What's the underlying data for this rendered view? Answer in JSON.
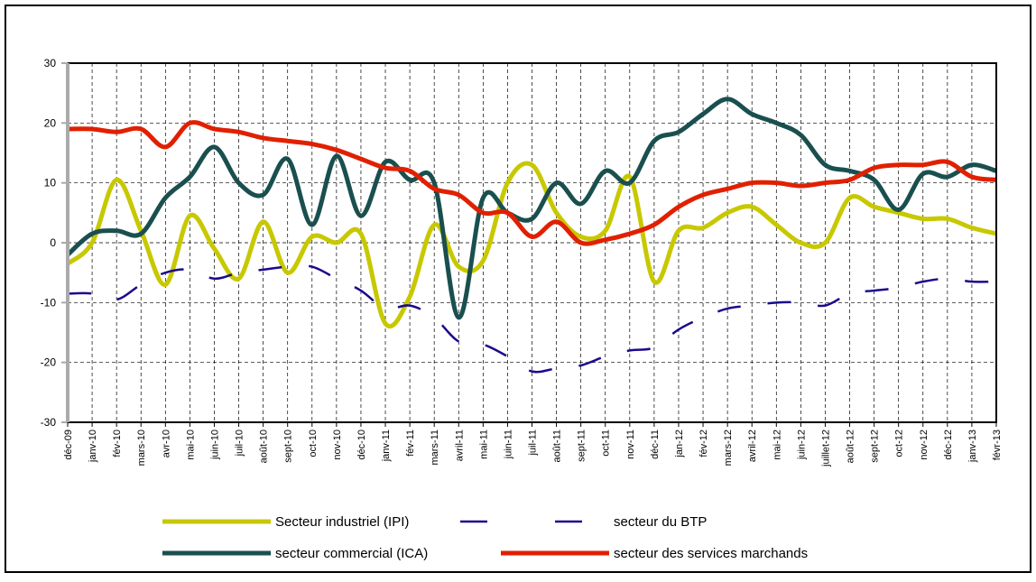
{
  "chart_data": {
    "type": "line",
    "categories": [
      "déc-09",
      "janv-10",
      "fév-10",
      "mars-10",
      "avr-10",
      "mai-10",
      "juin-10",
      "juil-10",
      "août-10",
      "sept-10",
      "oct-10",
      "nov-10",
      "déc-10",
      "janv-11",
      "fév-11",
      "mars-11",
      "avril-11",
      "mai-11",
      "juin-11",
      "juil-11",
      "août-11",
      "sept-11",
      "oct-11",
      "nov-11",
      "déc-11",
      "jan-12",
      "fév-12",
      "mars-12",
      "avril-12",
      "mai-12",
      "juin-12",
      "juillet-12",
      "août-12",
      "sept-12",
      "oct-12",
      "nov-12",
      "déc-12",
      "janv-13",
      "févr-13"
    ],
    "series": [
      {
        "name": "Secteur industriel (IPI)",
        "color": "#c8c800",
        "style": "solid",
        "values": [
          -3.5,
          0,
          10.5,
          2,
          -7,
          4.5,
          -1,
          -6,
          3.5,
          -5,
          1,
          0,
          1.5,
          -13.5,
          -9,
          3,
          -4,
          -3,
          10,
          13,
          5,
          1,
          2,
          11,
          -6.5,
          2,
          2.5,
          5,
          6,
          3,
          0,
          0,
          7.5,
          6,
          5,
          4,
          4,
          2.5,
          1.5
        ]
      },
      {
        "name": "secteur du BTP",
        "color": "#1a0a8c",
        "style": "dashed",
        "values": [
          -8.5,
          -8.5,
          -9.5,
          -7,
          -5,
          -4.5,
          -6,
          -5,
          -4.5,
          -4,
          -4,
          -6,
          -8,
          -11,
          -10.5,
          -12.5,
          -16.5,
          -17,
          -19,
          -21.5,
          -21,
          -20.5,
          -19,
          -18,
          -17.5,
          -14.5,
          -12.5,
          -11,
          -10.5,
          -10,
          -10,
          -10.5,
          -8.5,
          -8,
          -7.5,
          -6.5,
          -6,
          -6.5,
          -6.5
        ]
      },
      {
        "name": "secteur commercial (ICA)",
        "color": "#1a4f4f",
        "style": "solid",
        "values": [
          -2,
          1.5,
          2,
          1.5,
          7.5,
          11,
          16,
          10,
          8,
          14,
          3,
          14.5,
          4.5,
          13.5,
          10.5,
          10,
          -12.5,
          7.5,
          5,
          4,
          10,
          6.5,
          12,
          10,
          17,
          18.5,
          21.5,
          24,
          21.5,
          20,
          18,
          13,
          12,
          10.5,
          5.5,
          11.5,
          11,
          13,
          12
        ]
      },
      {
        "name": "secteur des services marchands",
        "color": "#e02000",
        "style": "solid",
        "values": [
          19,
          19,
          18.5,
          19,
          16,
          20,
          19,
          18.5,
          17.5,
          17,
          16.5,
          15.5,
          14,
          12.5,
          12,
          9,
          8,
          5,
          5,
          1,
          3.5,
          0,
          0.5,
          1.5,
          3,
          6,
          8,
          9,
          10,
          10,
          9.5,
          10,
          10.5,
          12.5,
          13,
          13,
          13.5,
          11,
          10.5
        ]
      }
    ],
    "ylim": [
      -30,
      30
    ],
    "yticks": [
      -30,
      -20,
      -10,
      0,
      10,
      20,
      30
    ],
    "grid": true,
    "legend": "bottom"
  }
}
